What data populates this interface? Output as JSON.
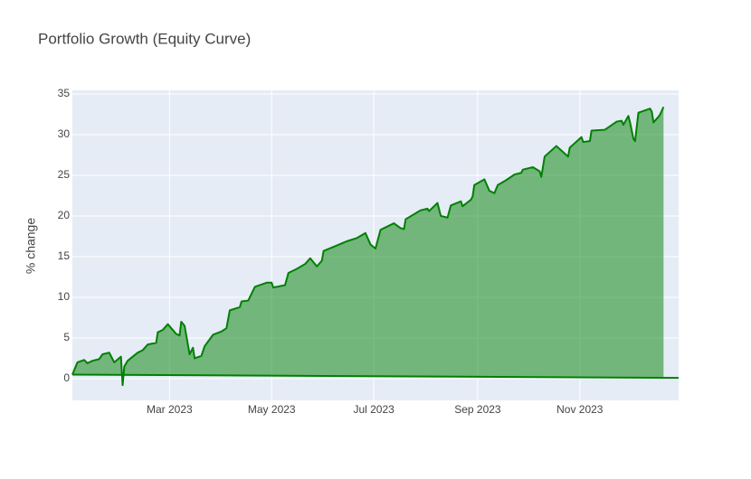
{
  "chart_data": {
    "type": "area",
    "title": "Portfolio Growth (Equity Curve)",
    "ylabel": "% change",
    "xlim": [
      "2023-01-02",
      "2023-12-30"
    ],
    "ylim": [
      -2.67,
      35.44
    ],
    "xticks": [
      {
        "value": "2023-03-01",
        "label": "Mar 2023"
      },
      {
        "value": "2023-05-01",
        "label": "May 2023"
      },
      {
        "value": "2023-07-01",
        "label": "Jul 2023"
      },
      {
        "value": "2023-09-01",
        "label": "Sep 2023"
      },
      {
        "value": "2023-11-01",
        "label": "Nov 2023"
      }
    ],
    "yticks": [
      0,
      5,
      10,
      15,
      20,
      25,
      30,
      35
    ],
    "grid": true,
    "series": [
      {
        "color": "#008000",
        "fill": true,
        "x": [
          "2023-01-02",
          "2023-01-05",
          "2023-01-09",
          "2023-01-11",
          "2023-01-14",
          "2023-01-18",
          "2023-01-20",
          "2023-01-24",
          "2023-01-27",
          "2023-01-31",
          "2023-02-01",
          "2023-02-02",
          "2023-02-04",
          "2023-02-10",
          "2023-02-13",
          "2023-02-16",
          "2023-02-21",
          "2023-02-22",
          "2023-02-25",
          "2023-02-28",
          "2023-03-05",
          "2023-03-07",
          "2023-03-08",
          "2023-03-10",
          "2023-03-13",
          "2023-03-15",
          "2023-03-16",
          "2023-03-20",
          "2023-03-22",
          "2023-03-27",
          "2023-04-01",
          "2023-04-04",
          "2023-04-06",
          "2023-04-12",
          "2023-04-13",
          "2023-04-17",
          "2023-04-21",
          "2023-04-28",
          "2023-05-01",
          "2023-05-02",
          "2023-05-09",
          "2023-05-11",
          "2023-05-16",
          "2023-05-21",
          "2023-05-24",
          "2023-05-28",
          "2023-05-31",
          "2023-06-01",
          "2023-06-08",
          "2023-06-15",
          "2023-06-21",
          "2023-06-26",
          "2023-06-29",
          "2023-07-02",
          "2023-07-05",
          "2023-07-13",
          "2023-07-17",
          "2023-07-19",
          "2023-07-20",
          "2023-07-29",
          "2023-08-02",
          "2023-08-03",
          "2023-08-08",
          "2023-08-10",
          "2023-08-14",
          "2023-08-16",
          "2023-08-22",
          "2023-08-23",
          "2023-08-28",
          "2023-08-29",
          "2023-08-30",
          "2023-09-05",
          "2023-09-08",
          "2023-09-11",
          "2023-09-13",
          "2023-09-18",
          "2023-09-23",
          "2023-09-27",
          "2023-09-28",
          "2023-10-04",
          "2023-10-08",
          "2023-10-09",
          "2023-10-11",
          "2023-10-18",
          "2023-10-25",
          "2023-10-26",
          "2023-11-02",
          "2023-11-03",
          "2023-11-07",
          "2023-11-08",
          "2023-11-16",
          "2023-11-23",
          "2023-11-26",
          "2023-11-27",
          "2023-11-30",
          "2023-12-01",
          "2023-12-03",
          "2023-12-04",
          "2023-12-06",
          "2023-12-13",
          "2023-12-14",
          "2023-12-15",
          "2023-12-18",
          "2023-12-19",
          "2023-12-21"
        ],
        "values": [
          0.5,
          2.0,
          2.3,
          1.9,
          2.2,
          2.4,
          3.0,
          3.2,
          2.0,
          2.7,
          -0.8,
          1.5,
          2.2,
          3.2,
          3.5,
          4.2,
          4.4,
          5.7,
          6.0,
          6.7,
          5.5,
          5.3,
          7.0,
          6.5,
          3.0,
          3.8,
          2.5,
          2.8,
          4.0,
          5.4,
          5.8,
          6.2,
          8.4,
          8.8,
          9.5,
          9.6,
          11.3,
          11.8,
          11.8,
          11.2,
          11.5,
          13.0,
          13.5,
          14.1,
          14.8,
          13.8,
          14.5,
          15.7,
          16.3,
          16.9,
          17.3,
          17.9,
          16.5,
          16.0,
          18.3,
          19.1,
          18.5,
          18.4,
          19.6,
          20.7,
          20.9,
          20.6,
          21.6,
          20.0,
          19.8,
          21.3,
          21.8,
          21.2,
          22.0,
          22.4,
          23.8,
          24.5,
          23.1,
          22.8,
          23.8,
          24.4,
          25.1,
          25.3,
          25.7,
          26.0,
          25.5,
          24.8,
          27.3,
          28.6,
          27.3,
          28.4,
          29.7,
          29.1,
          29.2,
          30.5,
          30.6,
          31.6,
          31.7,
          31.2,
          32.3,
          31.5,
          29.5,
          29.2,
          32.7,
          33.2,
          32.8,
          31.5,
          32.2,
          32.5,
          33.4
        ]
      },
      {
        "color": "#008000",
        "fill": false,
        "x": [
          "2023-01-02",
          "2023-12-30"
        ],
        "values": [
          0.5,
          0.1
        ]
      }
    ]
  }
}
